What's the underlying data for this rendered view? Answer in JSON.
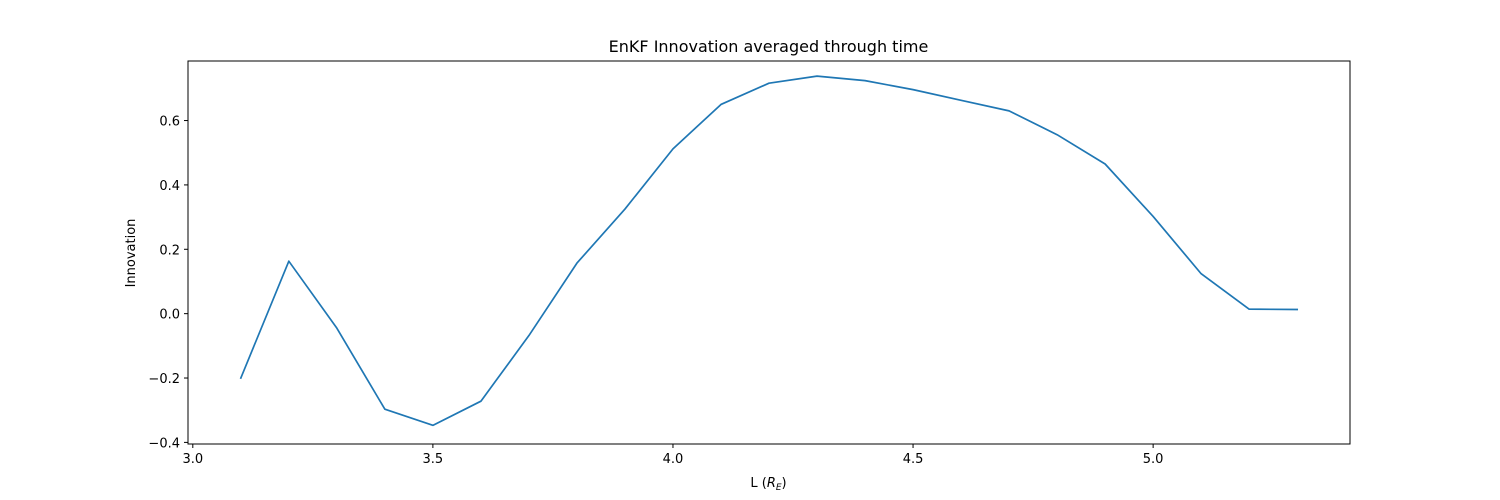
{
  "chart_data": {
    "type": "line",
    "title": "EnKF Innovation averaged through time",
    "xlabel_prefix": "L (",
    "xlabel_math_base": "R",
    "xlabel_math_sub": "E",
    "xlabel_suffix": ")",
    "ylabel": "Innovation",
    "xlim": [
      2.99,
      5.41
    ],
    "ylim": [
      -0.405,
      0.785
    ],
    "xticks": [
      3.0,
      3.5,
      4.0,
      4.5,
      5.0
    ],
    "xtick_labels": [
      "3.0",
      "3.5",
      "4.0",
      "4.5",
      "5.0"
    ],
    "yticks": [
      -0.4,
      -0.2,
      0.0,
      0.2,
      0.4,
      0.6
    ],
    "ytick_labels": [
      "−0.4",
      "−0.2",
      "0.0",
      "0.2",
      "0.4",
      "0.6"
    ],
    "grid": false,
    "series": [
      {
        "color": "#1f77b4",
        "x": [
          3.1,
          3.2,
          3.3,
          3.4,
          3.5,
          3.6,
          3.7,
          3.8,
          3.9,
          4.0,
          4.1,
          4.2,
          4.3,
          4.4,
          4.5,
          4.6,
          4.7,
          4.8,
          4.9,
          5.0,
          5.1,
          5.2,
          5.3
        ],
        "y": [
          -0.2,
          0.163,
          -0.045,
          -0.297,
          -0.347,
          -0.272,
          -0.068,
          0.157,
          0.325,
          0.512,
          0.65,
          0.716,
          0.738,
          0.724,
          0.696,
          0.663,
          0.63,
          0.556,
          0.465,
          0.302,
          0.124,
          0.014,
          0.013
        ]
      }
    ]
  }
}
